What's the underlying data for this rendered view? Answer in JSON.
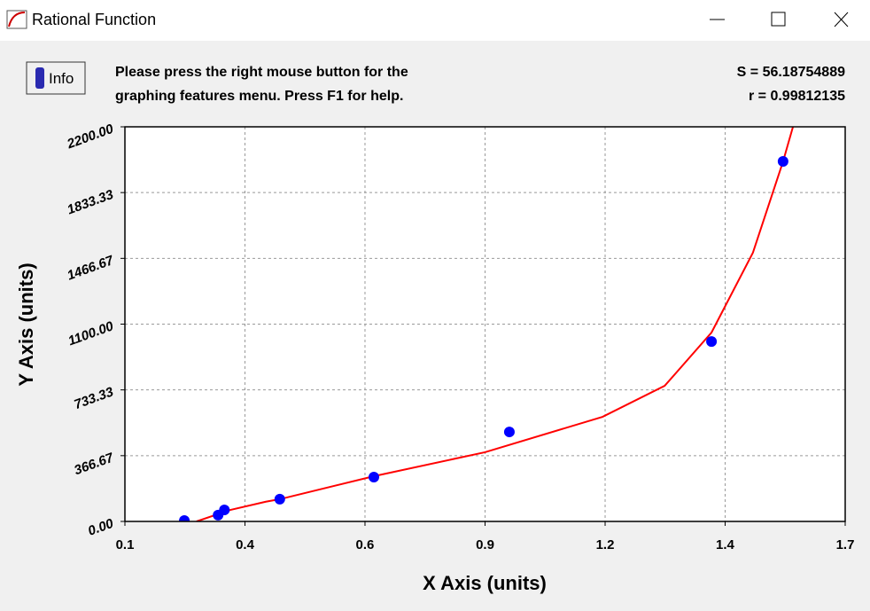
{
  "window": {
    "title": "Rational Function"
  },
  "toolbar": {
    "info_button": "Info",
    "message": [
      "Please press the right mouse button for the",
      "graphing features menu.  Press F1 for help."
    ],
    "stats": [
      "S = 56.18754889",
      "r = 0.99812135"
    ]
  },
  "chart_data": {
    "type": "scatter",
    "x_label": "X Axis (units)",
    "y_label": "Y Axis (units)",
    "xlim": [
      0.1,
      1.7
    ],
    "xticks": [
      0.1,
      {
        "value": 0.3667,
        "label": "0.4"
      },
      {
        "value": 0.6333,
        "label": "0.6"
      },
      0.9,
      {
        "value": 1.1667,
        "label": "1.2"
      },
      {
        "value": 1.4333,
        "label": "1.4"
      },
      1.7
    ],
    "ylim": [
      0,
      2200
    ],
    "yticks": [
      {
        "value": 0,
        "label": "0.00"
      },
      366.67,
      733.33,
      {
        "value": 1100,
        "label": "1100.00"
      },
      1466.67,
      1833.33,
      {
        "value": 2200,
        "label": "2200.00"
      }
    ],
    "grid": true,
    "series": [
      {
        "color": "#0000ff",
        "x": [
          0.232,
          0.307,
          0.321,
          0.444,
          0.653,
          0.954,
          1.403,
          1.562
        ],
        "values": [
          5,
          35,
          64,
          124,
          247,
          499,
          1003,
          2007
        ]
      },
      {
        "color": "#ff0000",
        "line": true,
        "x": [
          0.259,
          0.334,
          0.413,
          0.444,
          0.653,
          0.9,
          1.161,
          1.299,
          1.403,
          1.495,
          1.562,
          1.584
        ],
        "values": [
          0,
          64,
          110,
          124,
          252,
          386,
          583,
          756,
          1053,
          1498,
          2007,
          2200
        ]
      }
    ]
  }
}
